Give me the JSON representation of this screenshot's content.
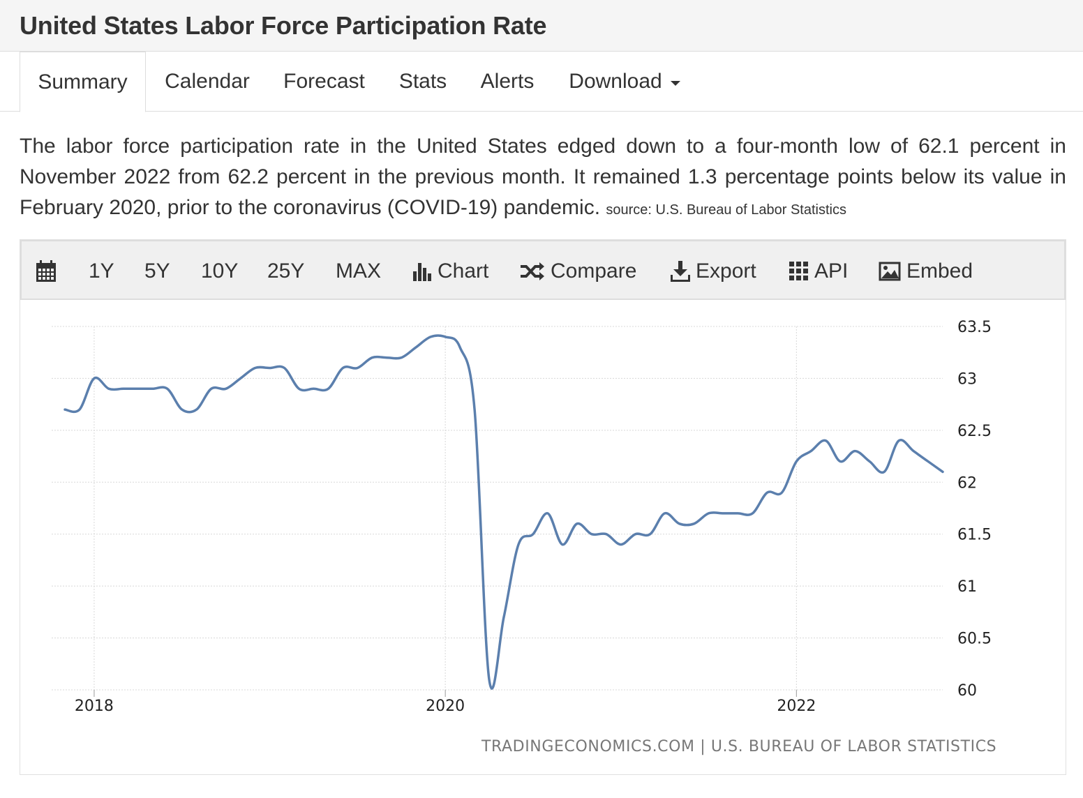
{
  "page": {
    "title": "United States Labor Force Participation Rate"
  },
  "tabs": [
    {
      "label": "Summary",
      "active": true
    },
    {
      "label": "Calendar",
      "active": false
    },
    {
      "label": "Forecast",
      "active": false
    },
    {
      "label": "Stats",
      "active": false
    },
    {
      "label": "Alerts",
      "active": false
    },
    {
      "label": "Download",
      "active": false,
      "dropdown": true
    }
  ],
  "summary": {
    "text": "The labor force participation rate in the United States edged down to a four-month low of 62.1 percent in November 2022 from 62.2 percent in the previous month. It remained 1.3 percentage points below its value in February 2020, prior to the coronavirus (COVID-19) pandemic.",
    "source": "source: U.S. Bureau of Labor Statistics"
  },
  "toolbar": {
    "calendar_icon": "calendar-icon",
    "ranges": [
      "1Y",
      "5Y",
      "10Y",
      "25Y",
      "MAX"
    ],
    "chart_label": "Chart",
    "compare_label": "Compare",
    "export_label": "Export",
    "api_label": "API",
    "embed_label": "Embed"
  },
  "footer": {
    "source": "TRADINGECONOMICS.COM | U.S. BUREAU OF LABOR STATISTICS"
  },
  "colors": {
    "line": "#5b7fad",
    "grid": "#d8d8d8",
    "text": "#333333"
  },
  "chart_data": {
    "type": "line",
    "title": "",
    "xlabel": "",
    "ylabel": "",
    "ylim": [
      60,
      63.5
    ],
    "y_ticks": [
      "63.5",
      "63",
      "62.5",
      "62",
      "61.5",
      "61",
      "60.5",
      "60"
    ],
    "x_ticks": [
      "2018",
      "2020",
      "2022"
    ],
    "grid": true,
    "series": [
      {
        "x": [
          "2017-11",
          "2017-12",
          "2018-01",
          "2018-02",
          "2018-03",
          "2018-04",
          "2018-05",
          "2018-06",
          "2018-07",
          "2018-08",
          "2018-09",
          "2018-10",
          "2018-11",
          "2018-12",
          "2019-01",
          "2019-02",
          "2019-03",
          "2019-04",
          "2019-05",
          "2019-06",
          "2019-07",
          "2019-08",
          "2019-09",
          "2019-10",
          "2019-11",
          "2019-12",
          "2020-01",
          "2020-02",
          "2020-03",
          "2020-04",
          "2020-05",
          "2020-06",
          "2020-07",
          "2020-08",
          "2020-09",
          "2020-10",
          "2020-11",
          "2020-12",
          "2021-01",
          "2021-02",
          "2021-03",
          "2021-04",
          "2021-05",
          "2021-06",
          "2021-07",
          "2021-08",
          "2021-09",
          "2021-10",
          "2021-11",
          "2021-12",
          "2022-01",
          "2022-02",
          "2022-03",
          "2022-04",
          "2022-05",
          "2022-06",
          "2022-07",
          "2022-08",
          "2022-09",
          "2022-10",
          "2022-11"
        ],
        "values": [
          62.7,
          62.7,
          63.0,
          62.9,
          62.9,
          62.9,
          62.9,
          62.9,
          62.7,
          62.7,
          62.9,
          62.9,
          63.0,
          63.1,
          63.1,
          63.1,
          62.9,
          62.9,
          62.9,
          63.1,
          63.1,
          63.2,
          63.2,
          63.2,
          63.3,
          63.4,
          63.4,
          63.3,
          62.7,
          60.1,
          60.7,
          61.4,
          61.5,
          61.7,
          61.4,
          61.6,
          61.5,
          61.5,
          61.4,
          61.5,
          61.5,
          61.7,
          61.6,
          61.6,
          61.7,
          61.7,
          61.7,
          61.7,
          61.9,
          61.9,
          62.2,
          62.3,
          62.4,
          62.2,
          62.3,
          62.2,
          62.1,
          62.4,
          62.3,
          62.2,
          62.1
        ]
      }
    ]
  }
}
